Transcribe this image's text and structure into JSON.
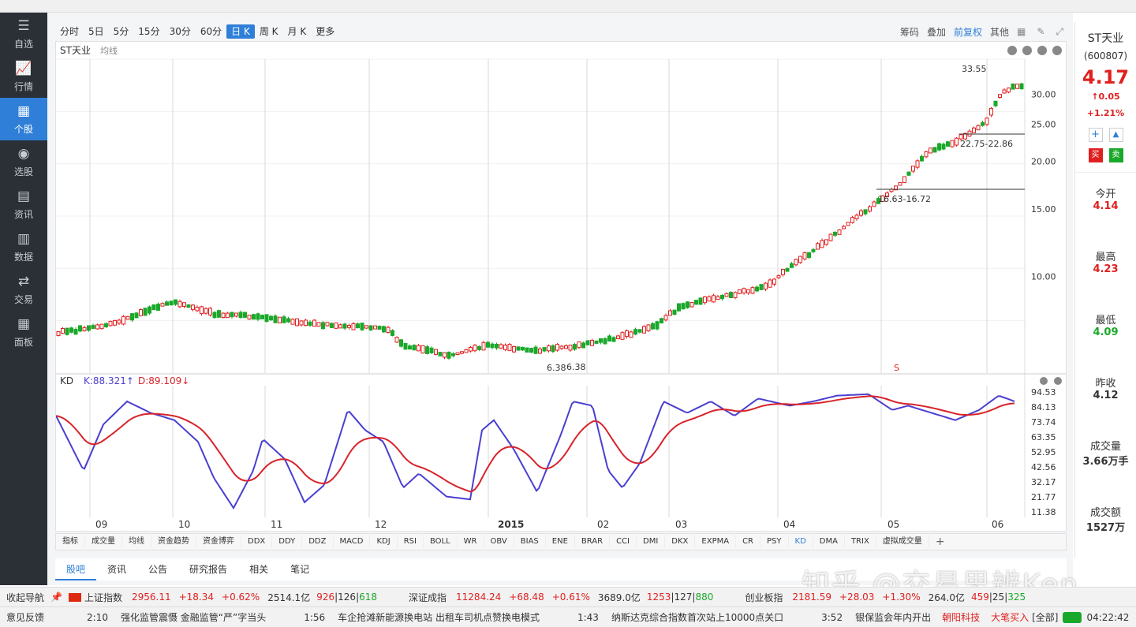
{
  "sidebar": {
    "items": [
      {
        "label": "自选",
        "icon": "star-list-icon"
      },
      {
        "label": "行情",
        "icon": "market-chart-icon"
      },
      {
        "label": "个股",
        "icon": "grid-icon",
        "active": true
      },
      {
        "label": "选股",
        "icon": "compass-icon"
      },
      {
        "label": "资讯",
        "icon": "news-icon"
      },
      {
        "label": "数据",
        "icon": "bar-data-icon"
      },
      {
        "label": "交易",
        "icon": "trade-icon"
      },
      {
        "label": "面板",
        "icon": "panel-icon"
      }
    ]
  },
  "toolbar": {
    "periods": [
      "分时",
      "5日",
      "5分",
      "15分",
      "30分",
      "60分",
      "日 K",
      "周 K",
      "月 K",
      "更多"
    ],
    "active": "日 K",
    "right": [
      "筹码",
      "叠加",
      "前复权",
      "其他"
    ]
  },
  "chart": {
    "stock_label": "ST天业",
    "ma_label": "均线",
    "kd_label": "KD",
    "kd_k": "K:88.321↑",
    "kd_d": "D:89.109↓",
    "annotations": {
      "high": "33.55",
      "range1": "22.75-22.86",
      "range2": "16.63-16.72",
      "low": "6.38",
      "low2": "6.38",
      "marker": "S"
    },
    "price_ticks": [
      "30.00",
      "25.00",
      "20.00",
      "15.00",
      "10.00"
    ],
    "kd_ticks": [
      "94.53",
      "84.13",
      "73.74",
      "63.35",
      "52.95",
      "42.56",
      "32.17",
      "21.77",
      "11.38"
    ],
    "months": [
      "09",
      "10",
      "11",
      "12",
      "2015",
      "02",
      "03",
      "04",
      "05",
      "06"
    ]
  },
  "indicators": [
    "指标",
    "成交量",
    "均线",
    "资金趋势",
    "资金博弈",
    "DDX",
    "DDY",
    "DDZ",
    "MACD",
    "KDJ",
    "RSI",
    "BOLL",
    "WR",
    "OBV",
    "BIAS",
    "ENE",
    "BRAR",
    "CCI",
    "DMI",
    "DKX",
    "EXPMA",
    "CR",
    "PSY",
    "KD",
    "DMA",
    "TRIX",
    "虚拟成交量"
  ],
  "bottom_tabs": [
    "股吧",
    "资讯",
    "公告",
    "研究报告",
    "相关",
    "笔记"
  ],
  "quote": {
    "name": "ST天业",
    "code": "(600807)",
    "price": "4.17",
    "change": "↑0.05",
    "pct": "+1.21%",
    "buy": "买",
    "sell": "卖",
    "open_label": "今开",
    "open": "4.14",
    "high_label": "最高",
    "high": "4.23",
    "low_label": "最低",
    "low": "4.09",
    "prev_label": "昨收",
    "prev": "4.12",
    "vol_label": "成交量",
    "vol": "3.66万手",
    "amt_label": "成交额",
    "amt": "1527万"
  },
  "status1": {
    "nav": "收起导航",
    "sh_name": "上证指数",
    "sh_val": "2956.11",
    "sh_chg": "+18.34",
    "sh_pct": "+0.62%",
    "sh_amt": "2514.1亿",
    "sh_cnt": "926",
    "sh_cnt2": "126",
    "sh_cnt3": "618",
    "sz_name": "深证成指",
    "sz_val": "11284.24",
    "sz_chg": "+68.48",
    "sz_pct": "+0.61%",
    "sz_amt": "3689.0亿",
    "sz_cnt": "1253",
    "sz_cnt2": "127",
    "sz_cnt3": "880",
    "cy_name": "创业板指",
    "cy_val": "2181.59",
    "cy_chg": "+28.03",
    "cy_pct": "+1.30%",
    "cy_amt": "264.0亿",
    "cy_cnt": "459",
    "cy_cnt2": "25",
    "cy_cnt3": "325"
  },
  "status2": {
    "feedback": "意见反馈",
    "n1_time": "2:10",
    "n1": "强化监管震慑 金融监管“严”字当头",
    "n2_time": "1:56",
    "n2": "车企抢滩新能源换电站 出租车司机点赞换电模式",
    "n3_time": "1:43",
    "n3": "纳斯达克综合指数首次站上10000点关口",
    "n4_time": "3:52",
    "n4": "银保监会年内开出",
    "stock": "朝阳科技",
    "action": "大笔买入",
    "all": "[全部]",
    "clock": "04:22:42"
  },
  "watermark": "知乎 @交易思辨Ken",
  "colors": {
    "up": "#e02020",
    "down": "#1aa82a",
    "accent": "#2f7fd8",
    "k_line": "#4a3fd0",
    "d_line": "#d8232a"
  }
}
